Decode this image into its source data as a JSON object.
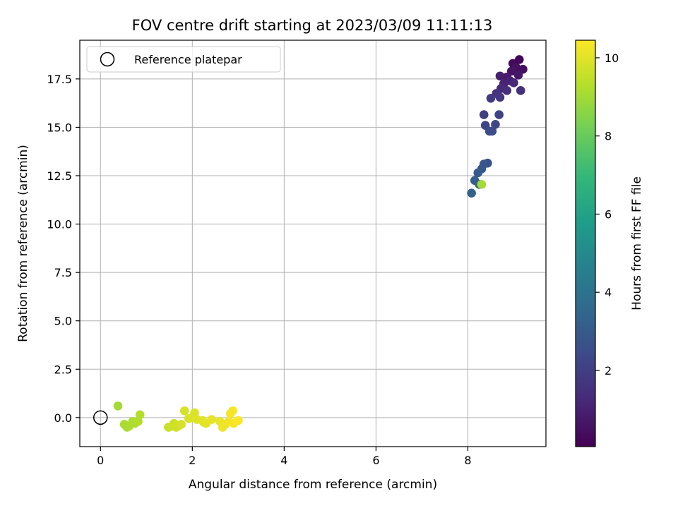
{
  "chart_data": {
    "type": "scatter",
    "title": "FOV centre drift starting at 2023/03/09 11:11:13",
    "xlabel": "Angular distance from reference (arcmin)",
    "ylabel": "Rotation from reference (arcmin)",
    "colorbar_label": "Hours from first FF file",
    "xlim": [
      -0.45,
      9.7
    ],
    "ylim": [
      -1.5,
      19.5
    ],
    "x_ticks": [
      0,
      2,
      4,
      6,
      8
    ],
    "y_ticks": [
      0.0,
      2.5,
      5.0,
      7.5,
      10.0,
      12.5,
      15.0,
      17.5
    ],
    "x_tick_labels": [
      "0",
      "2",
      "4",
      "6",
      "8"
    ],
    "y_tick_labels": [
      "0.0",
      "2.5",
      "5.0",
      "7.5",
      "10.0",
      "12.5",
      "15.0",
      "17.5"
    ],
    "colorbar_range": [
      0.05,
      10.45
    ],
    "colorbar_ticks": [
      2,
      4,
      6,
      8,
      10
    ],
    "colorbar_tick_labels": [
      "2",
      "4",
      "6",
      "8",
      "10"
    ],
    "colormap": [
      "#440154",
      "#482878",
      "#3e4989",
      "#31688e",
      "#26828e",
      "#1f9e89",
      "#35b779",
      "#6ece58",
      "#b5de2b",
      "#fde725"
    ],
    "grid": true,
    "legend": {
      "position": "top-left",
      "entries": [
        {
          "label": "Reference platepar",
          "marker": "open-circle",
          "x": 0,
          "y": 0
        }
      ]
    },
    "points": [
      {
        "x": 9.12,
        "y": 18.5,
        "h": 0.2
      },
      {
        "x": 8.98,
        "y": 18.3,
        "h": 0.3
      },
      {
        "x": 9.2,
        "y": 18.0,
        "h": 0.4
      },
      {
        "x": 9.05,
        "y": 18.1,
        "h": 0.5
      },
      {
        "x": 8.95,
        "y": 17.9,
        "h": 0.6
      },
      {
        "x": 9.1,
        "y": 17.7,
        "h": 0.7
      },
      {
        "x": 8.85,
        "y": 17.6,
        "h": 0.8
      },
      {
        "x": 8.7,
        "y": 17.65,
        "h": 0.9
      },
      {
        "x": 8.92,
        "y": 17.4,
        "h": 1.0
      },
      {
        "x": 8.78,
        "y": 17.25,
        "h": 1.1
      },
      {
        "x": 9.0,
        "y": 17.3,
        "h": 1.2
      },
      {
        "x": 8.72,
        "y": 17.0,
        "h": 1.3
      },
      {
        "x": 8.85,
        "y": 16.9,
        "h": 1.4
      },
      {
        "x": 9.15,
        "y": 16.9,
        "h": 1.5
      },
      {
        "x": 8.62,
        "y": 16.75,
        "h": 1.6
      },
      {
        "x": 8.7,
        "y": 16.55,
        "h": 1.7
      },
      {
        "x": 8.5,
        "y": 16.5,
        "h": 1.8
      },
      {
        "x": 8.35,
        "y": 15.65,
        "h": 2.0
      },
      {
        "x": 8.68,
        "y": 15.65,
        "h": 2.1
      },
      {
        "x": 8.38,
        "y": 15.1,
        "h": 2.2
      },
      {
        "x": 8.6,
        "y": 15.15,
        "h": 2.3
      },
      {
        "x": 8.47,
        "y": 14.8,
        "h": 2.45
      },
      {
        "x": 8.53,
        "y": 14.8,
        "h": 2.55
      },
      {
        "x": 8.43,
        "y": 13.15,
        "h": 2.7
      },
      {
        "x": 8.35,
        "y": 13.1,
        "h": 2.8
      },
      {
        "x": 8.3,
        "y": 12.85,
        "h": 2.9
      },
      {
        "x": 8.22,
        "y": 12.65,
        "h": 3.0
      },
      {
        "x": 8.15,
        "y": 12.25,
        "h": 3.1
      },
      {
        "x": 8.25,
        "y": 12.05,
        "h": 3.2
      },
      {
        "x": 8.08,
        "y": 11.6,
        "h": 3.3
      },
      {
        "x": 8.3,
        "y": 12.05,
        "h": 9.0
      },
      {
        "x": 0.38,
        "y": 0.6,
        "h": 9.0
      },
      {
        "x": 0.52,
        "y": -0.35,
        "h": 9.1
      },
      {
        "x": 0.58,
        "y": -0.5,
        "h": 9.1
      },
      {
        "x": 0.62,
        "y": -0.45,
        "h": 9.15
      },
      {
        "x": 0.7,
        "y": -0.2,
        "h": 9.2
      },
      {
        "x": 0.75,
        "y": -0.3,
        "h": 9.2
      },
      {
        "x": 0.82,
        "y": -0.2,
        "h": 9.25
      },
      {
        "x": 0.86,
        "y": 0.15,
        "h": 9.3
      },
      {
        "x": 1.48,
        "y": -0.5,
        "h": 9.6
      },
      {
        "x": 1.55,
        "y": -0.45,
        "h": 9.65
      },
      {
        "x": 1.6,
        "y": -0.3,
        "h": 9.7
      },
      {
        "x": 1.65,
        "y": -0.5,
        "h": 9.7
      },
      {
        "x": 1.72,
        "y": -0.4,
        "h": 9.75
      },
      {
        "x": 1.76,
        "y": -0.35,
        "h": 9.8
      },
      {
        "x": 1.83,
        "y": 0.35,
        "h": 9.8
      },
      {
        "x": 1.92,
        "y": -0.05,
        "h": 9.85
      },
      {
        "x": 2.0,
        "y": 0.0,
        "h": 9.9
      },
      {
        "x": 2.05,
        "y": 0.25,
        "h": 9.9
      },
      {
        "x": 2.1,
        "y": -0.1,
        "h": 9.95
      },
      {
        "x": 2.22,
        "y": -0.15,
        "h": 10.0
      },
      {
        "x": 2.25,
        "y": -0.25,
        "h": 10.0
      },
      {
        "x": 2.3,
        "y": -0.3,
        "h": 10.05
      },
      {
        "x": 2.42,
        "y": -0.1,
        "h": 10.1
      },
      {
        "x": 2.6,
        "y": -0.2,
        "h": 10.15
      },
      {
        "x": 2.66,
        "y": -0.5,
        "h": 10.2
      },
      {
        "x": 2.72,
        "y": -0.35,
        "h": 10.2
      },
      {
        "x": 2.8,
        "y": -0.2,
        "h": 10.25
      },
      {
        "x": 2.83,
        "y": 0.2,
        "h": 10.3
      },
      {
        "x": 2.88,
        "y": 0.35,
        "h": 10.3
      },
      {
        "x": 2.9,
        "y": -0.3,
        "h": 10.35
      },
      {
        "x": 3.0,
        "y": -0.15,
        "h": 10.4
      }
    ]
  }
}
